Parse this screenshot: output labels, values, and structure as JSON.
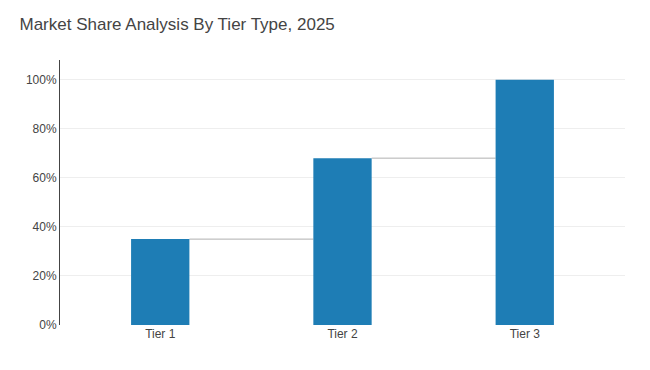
{
  "chart_data": {
    "type": "bar",
    "title": "Market Share Analysis By Tier Type, 2025",
    "categories": [
      "Tier 1",
      "Tier 2",
      "Tier 3"
    ],
    "values": [
      35,
      68,
      100
    ],
    "color": "#1e7db5",
    "ylim": [
      0,
      108
    ],
    "yticks": [
      {
        "value": 0,
        "label": "0%"
      },
      {
        "value": 20,
        "label": "20%"
      },
      {
        "value": 40,
        "label": "40%"
      },
      {
        "value": 60,
        "label": "60%"
      },
      {
        "value": 80,
        "label": "80%"
      },
      {
        "value": 100,
        "label": "100%"
      }
    ],
    "grid": true
  }
}
